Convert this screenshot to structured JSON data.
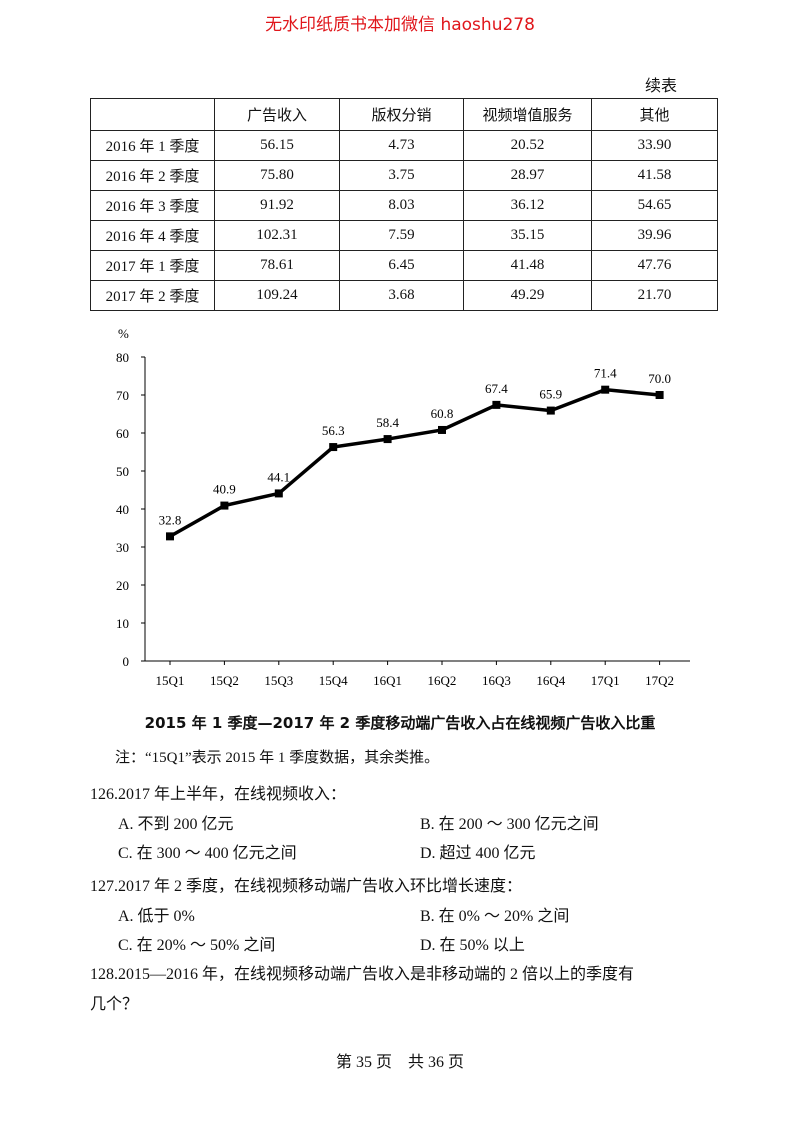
{
  "header": {
    "watermark": "无水印纸质书本加微信 haoshu278"
  },
  "table": {
    "caption": "续表",
    "columns": [
      "",
      "广告收入",
      "版权分销",
      "视频增值服务",
      "其他"
    ],
    "rows": [
      [
        "2016 年 1 季度",
        "56.15",
        "4.73",
        "20.52",
        "33.90"
      ],
      [
        "2016 年 2 季度",
        "75.80",
        "3.75",
        "28.97",
        "41.58"
      ],
      [
        "2016 年 3 季度",
        "91.92",
        "8.03",
        "36.12",
        "54.65"
      ],
      [
        "2016 年 4 季度",
        "102.31",
        "7.59",
        "35.15",
        "39.96"
      ],
      [
        "2017 年 1 季度",
        "78.61",
        "6.45",
        "41.48",
        "47.76"
      ],
      [
        "2017 年 2 季度",
        "109.24",
        "3.68",
        "49.29",
        "21.70"
      ]
    ]
  },
  "chart_data": {
    "type": "line",
    "title": "2015 年 1 季度—2017 年 2 季度移动端广告收入占在线视频广告收入比重",
    "y_label": "%",
    "categories": [
      "15Q1",
      "15Q2",
      "15Q3",
      "15Q4",
      "16Q1",
      "16Q2",
      "16Q3",
      "16Q4",
      "17Q1",
      "17Q2"
    ],
    "values": [
      32.8,
      40.9,
      44.1,
      56.3,
      58.4,
      60.8,
      67.4,
      65.9,
      71.4,
      70.0
    ],
    "value_labels": [
      "32.8",
      "40.9",
      "44.1",
      "56.3",
      "58.4",
      "60.8",
      "67.4",
      "65.9",
      "71.4",
      "70.0"
    ],
    "color": "#000000",
    "ylim": [
      0,
      80
    ],
    "yticks": [
      0,
      10,
      20,
      30,
      40,
      50,
      60,
      70,
      80
    ]
  },
  "note": "注：“15Q1”表示 2015 年 1 季度数据，其余类推。",
  "questions": [
    {
      "stem": "126.2017 年上半年，在线视频收入：",
      "options": [
        "A. 不到 200 亿元",
        "B. 在 200 ～ 300 亿元之间",
        "C. 在 300 ～ 400 亿元之间",
        "D. 超过 400 亿元"
      ]
    },
    {
      "stem": "127.2017 年 2 季度，在线视频移动端广告收入环比增长速度：",
      "options": [
        "A. 低于 0%",
        "B. 在 0% ～ 20% 之间",
        "C. 在 20% ～ 50% 之间",
        "D. 在 50% 以上"
      ]
    },
    {
      "stem": [
        "128.2015—2016 年，在线视频移动端广告收入是非移动端的 2 倍以上的季度有",
        "几个？"
      ],
      "options": []
    }
  ],
  "footer": "第 35 页　共 36 页"
}
